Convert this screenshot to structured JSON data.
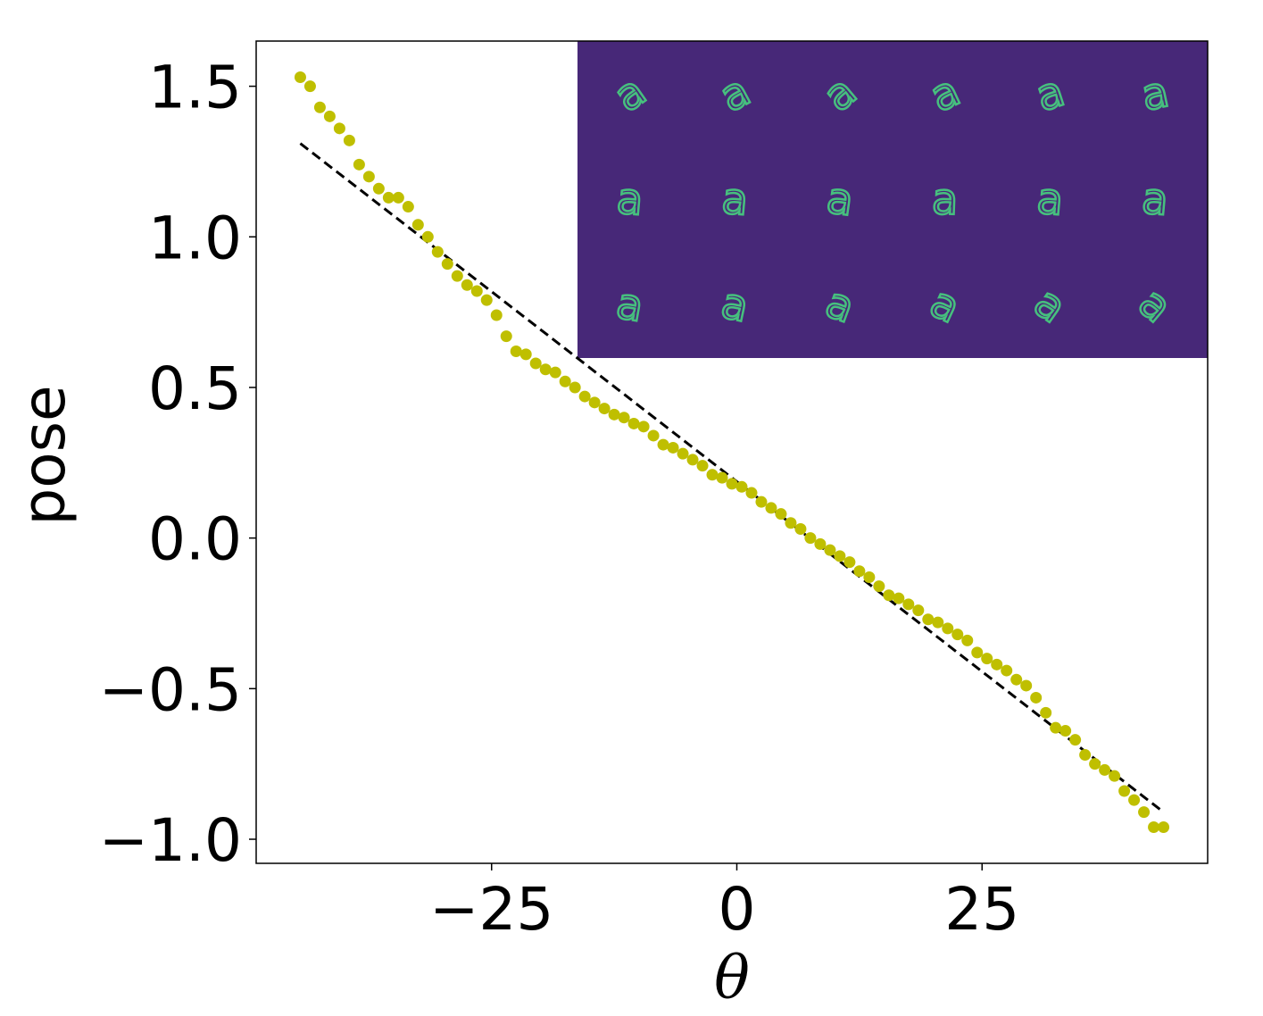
{
  "chart_data": {
    "type": "scatter",
    "xlabel": "θ",
    "ylabel": "pose",
    "xlim": [
      -49,
      48
    ],
    "ylim": [
      -1.08,
      1.65
    ],
    "x_ticks": [
      -25,
      0,
      25
    ],
    "x_tick_labels": [
      "−25",
      "0",
      "25"
    ],
    "y_ticks": [
      -1.0,
      -0.5,
      0.0,
      0.5,
      1.0,
      1.5
    ],
    "y_tick_labels": [
      "−1.0",
      "−0.5",
      "0.0",
      "0.5",
      "1.0",
      "1.5"
    ],
    "grid": false,
    "colors": {
      "points": "#bfbf00",
      "fit_line": "#000000",
      "inset_background": "#472878",
      "inset_glyph": "#46c07e"
    },
    "series": [
      {
        "type": "scatter",
        "x": [
          -44.5,
          -43.5,
          -42.5,
          -41.5,
          -40.5,
          -39.5,
          -38.5,
          -37.5,
          -36.5,
          -35.5,
          -34.5,
          -33.5,
          -32.5,
          -31.5,
          -30.5,
          -29.5,
          -28.5,
          -27.5,
          -26.5,
          -25.5,
          -24.5,
          -23.5,
          -22.5,
          -21.5,
          -20.5,
          -19.5,
          -18.5,
          -17.5,
          -16.5,
          -15.5,
          -14.5,
          -13.5,
          -12.5,
          -11.5,
          -10.5,
          -9.5,
          -8.5,
          -7.5,
          -6.5,
          -5.5,
          -4.5,
          -3.5,
          -2.5,
          -1.5,
          -0.5,
          0.5,
          1.5,
          2.5,
          3.5,
          4.5,
          5.5,
          6.5,
          7.5,
          8.5,
          9.5,
          10.5,
          11.5,
          12.5,
          13.5,
          14.5,
          15.5,
          16.5,
          17.5,
          18.5,
          19.5,
          20.5,
          21.5,
          22.5,
          23.5,
          24.5,
          25.5,
          26.5,
          27.5,
          28.5,
          29.5,
          30.5,
          31.5,
          32.5,
          33.5,
          34.5,
          35.5,
          36.5,
          37.5,
          38.5,
          39.5,
          40.5,
          41.5,
          42.5,
          43.5
        ],
        "y": [
          1.53,
          1.5,
          1.43,
          1.4,
          1.36,
          1.32,
          1.24,
          1.2,
          1.16,
          1.13,
          1.13,
          1.1,
          1.04,
          1.0,
          0.95,
          0.91,
          0.87,
          0.84,
          0.82,
          0.79,
          0.74,
          0.67,
          0.62,
          0.61,
          0.58,
          0.56,
          0.55,
          0.52,
          0.5,
          0.47,
          0.45,
          0.43,
          0.41,
          0.4,
          0.38,
          0.37,
          0.34,
          0.31,
          0.3,
          0.28,
          0.26,
          0.24,
          0.21,
          0.2,
          0.18,
          0.17,
          0.15,
          0.12,
          0.1,
          0.08,
          0.05,
          0.03,
          0.0,
          -0.02,
          -0.04,
          -0.06,
          -0.08,
          -0.11,
          -0.13,
          -0.16,
          -0.19,
          -0.2,
          -0.22,
          -0.24,
          -0.27,
          -0.28,
          -0.3,
          -0.32,
          -0.34,
          -0.38,
          -0.4,
          -0.42,
          -0.44,
          -0.47,
          -0.49,
          -0.53,
          -0.58,
          -0.63,
          -0.64,
          -0.67,
          -0.72,
          -0.75,
          -0.77,
          -0.79,
          -0.84,
          -0.87,
          -0.91,
          -0.96,
          -0.96
        ]
      },
      {
        "type": "line",
        "style": "dashed",
        "x": [
          -44.5,
          43.5
        ],
        "y": [
          1.31,
          -0.91
        ]
      }
    ],
    "inset": {
      "rows": 3,
      "cols": 6,
      "glyph": "a",
      "rotations_deg": [
        [
          -35,
          -28,
          -40,
          -25,
          -18,
          -12
        ],
        [
          5,
          5,
          8,
          2,
          5,
          5
        ],
        [
          10,
          12,
          20,
          25,
          35,
          40
        ]
      ]
    }
  }
}
